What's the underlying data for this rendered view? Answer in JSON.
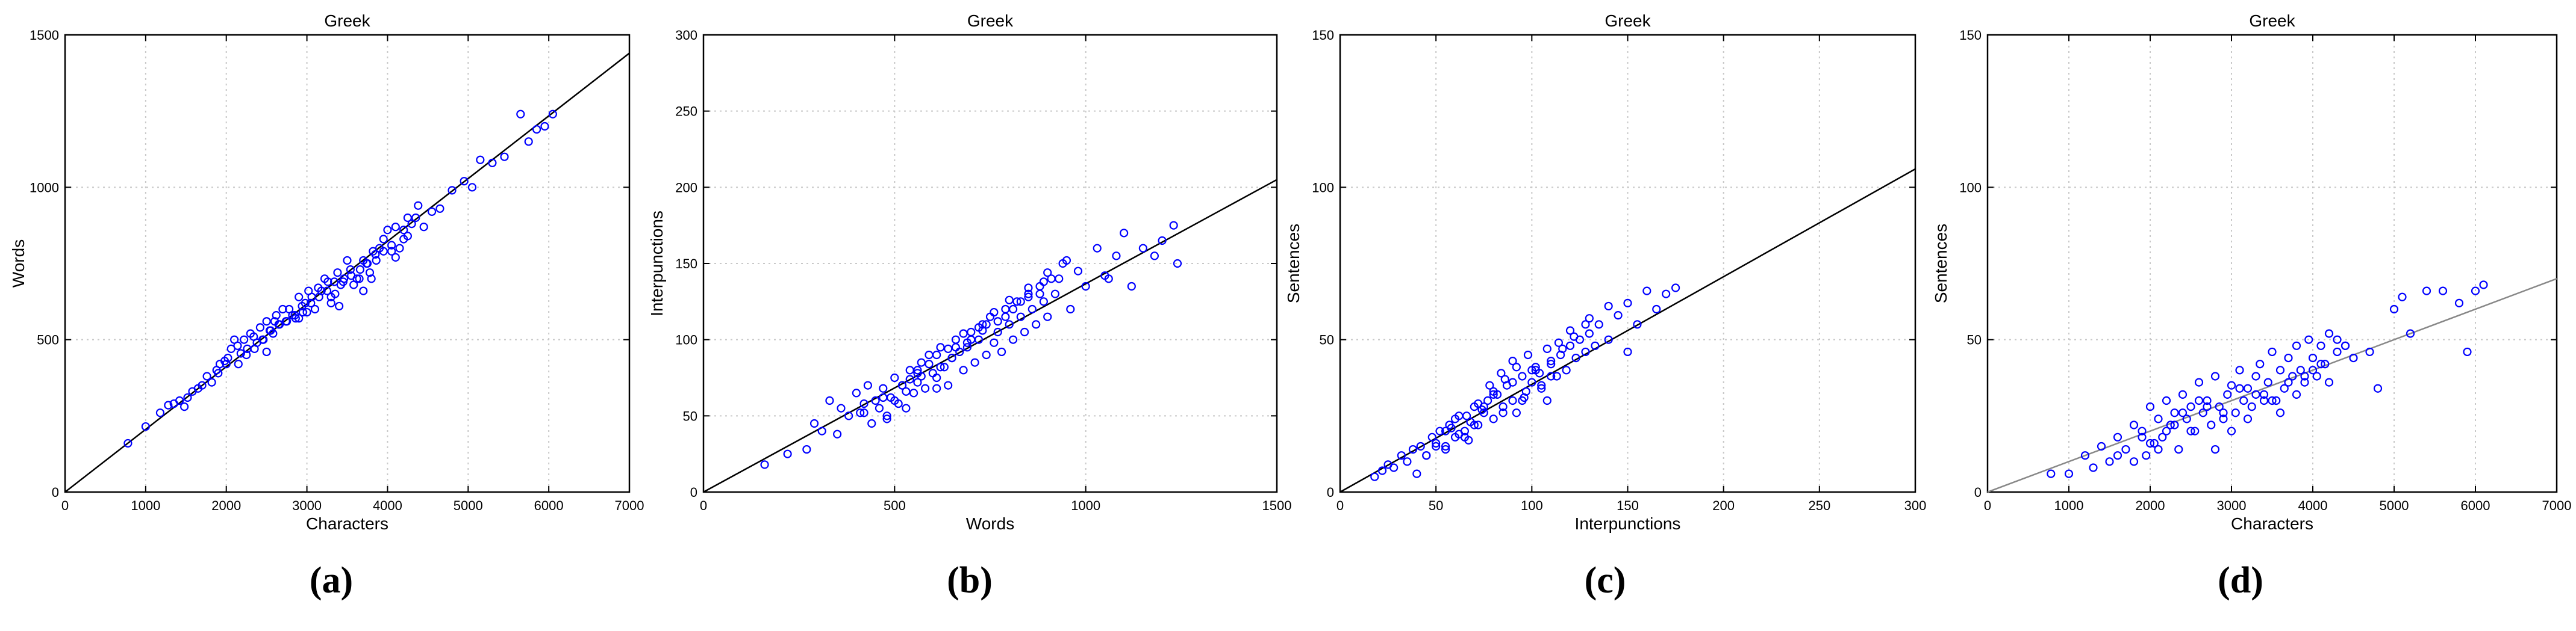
{
  "figure": {
    "panel_labels": [
      "(a)",
      "(b)",
      "(c)",
      "(d)"
    ]
  },
  "chart_data": [
    {
      "type": "scatter",
      "title": "Greek",
      "xlabel": "Characters",
      "ylabel": "Words",
      "xlim": [
        0,
        7000
      ],
      "ylim": [
        0,
        1500
      ],
      "xticks": [
        0,
        1000,
        2000,
        3000,
        4000,
        5000,
        6000,
        7000
      ],
      "yticks": [
        0,
        500,
        1000,
        1500
      ],
      "grid": true,
      "marker_color": "#0000ff",
      "fit_line": {
        "x": [
          0,
          7000
        ],
        "y": [
          0,
          1440
        ],
        "color": "#000000"
      },
      "series": [
        {
          "x": [
            780,
            1000,
            1180,
            1280,
            1350,
            1420,
            1480,
            1520,
            1580,
            1650,
            1700,
            1760,
            1820,
            1880,
            1920,
            1980,
            2020,
            2060,
            2100,
            2140,
            2180,
            2220,
            2260,
            2300,
            2340,
            2380,
            2420,
            2460,
            2500,
            2540,
            2580,
            2620,
            2660,
            2700,
            2740,
            2780,
            2820,
            2860,
            2900,
            2940,
            2980,
            3020,
            3060,
            3100,
            3140,
            3180,
            3220,
            3260,
            3300,
            3340,
            3380,
            3420,
            3460,
            3500,
            3540,
            3580,
            3620,
            3660,
            3700,
            3740,
            3780,
            3820,
            3860,
            3900,
            3950,
            4000,
            4050,
            4100,
            4150,
            4200,
            4250,
            4300,
            4380,
            4450,
            4550,
            4650,
            4800,
            4950,
            5050,
            5150,
            5300,
            5450,
            5650,
            5750,
            5850,
            5950,
            6050,
            2150,
            2450,
            2750,
            3050,
            3350,
            3650,
            3950,
            4250,
            2250,
            2550,
            2850,
            3150,
            3450,
            3750,
            4050,
            2350,
            2650,
            2950,
            3250,
            3550,
            3850,
            1900,
            2000,
            2500,
            2900,
            3300,
            3700,
            4100,
            4350,
            2600,
            3000,
            3400,
            3800,
            4200
          ],
          "y": [
            160,
            215,
            260,
            285,
            290,
            300,
            280,
            310,
            330,
            340,
            350,
            380,
            360,
            400,
            420,
            430,
            440,
            470,
            500,
            480,
            455,
            500,
            470,
            520,
            510,
            490,
            540,
            500,
            560,
            530,
            520,
            580,
            550,
            600,
            560,
            600,
            580,
            570,
            640,
            610,
            620,
            660,
            640,
            600,
            670,
            660,
            700,
            690,
            640,
            690,
            720,
            680,
            700,
            760,
            730,
            680,
            700,
            730,
            760,
            750,
            720,
            790,
            760,
            800,
            830,
            860,
            790,
            870,
            800,
            860,
            900,
            880,
            940,
            870,
            920,
            930,
            990,
            1020,
            1000,
            1090,
            1080,
            1100,
            1240,
            1150,
            1190,
            1200,
            1240,
            420,
            500,
            560,
            620,
            650,
            700,
            790,
            840,
            450,
            530,
            580,
            640,
            690,
            750,
            810,
            470,
            550,
            590,
            660,
            710,
            780,
            390,
            420,
            460,
            570,
            620,
            660,
            770,
            900,
            560,
            590,
            610,
            700,
            830
          ]
        }
      ]
    },
    {
      "type": "scatter",
      "title": "Greek",
      "xlabel": "Words",
      "ylabel": "Interpunctions",
      "xlim": [
        0,
        1500
      ],
      "ylim": [
        0,
        300
      ],
      "xticks": [
        0,
        500,
        1000,
        1500
      ],
      "yticks": [
        0,
        50,
        100,
        150,
        200,
        250,
        300
      ],
      "grid": true,
      "marker_color": "#0000ff",
      "fit_line": {
        "x": [
          0,
          1500
        ],
        "y": [
          0,
          205
        ],
        "color": "#000000"
      },
      "series": [
        {
          "x": [
            160,
            220,
            270,
            290,
            310,
            330,
            350,
            360,
            380,
            400,
            410,
            420,
            430,
            440,
            450,
            460,
            470,
            480,
            490,
            500,
            510,
            520,
            530,
            540,
            550,
            560,
            570,
            580,
            590,
            600,
            610,
            620,
            630,
            640,
            650,
            660,
            670,
            680,
            690,
            700,
            710,
            720,
            730,
            740,
            750,
            760,
            770,
            780,
            790,
            800,
            810,
            820,
            830,
            840,
            850,
            860,
            870,
            880,
            890,
            900,
            910,
            920,
            940,
            960,
            980,
            1000,
            1030,
            1060,
            1080,
            1100,
            1120,
            1150,
            1180,
            1200,
            1230,
            1240,
            420,
            470,
            520,
            560,
            610,
            660,
            700,
            740,
            790,
            830,
            880,
            930,
            480,
            530,
            570,
            620,
            650,
            690,
            730,
            770,
            810,
            850,
            890,
            500,
            540,
            590,
            640,
            680,
            720,
            760,
            800,
            850,
            900,
            950,
            1050,
            560,
            610
          ],
          "y": [
            18,
            25,
            28,
            45,
            40,
            60,
            38,
            55,
            50,
            65,
            52,
            58,
            70,
            45,
            60,
            55,
            68,
            50,
            62,
            75,
            58,
            70,
            55,
            80,
            65,
            72,
            85,
            68,
            90,
            78,
            75,
            95,
            82,
            70,
            88,
            100,
            92,
            80,
            95,
            105,
            85,
            100,
            110,
            90,
            115,
            98,
            105,
            92,
            120,
            110,
            100,
            125,
            115,
            105,
            130,
            120,
            110,
            135,
            125,
            115,
            140,
            130,
            150,
            120,
            145,
            135,
            160,
            140,
            155,
            170,
            135,
            160,
            155,
            165,
            175,
            150,
            52,
            62,
            70,
            80,
            90,
            95,
            100,
            110,
            115,
            125,
            130,
            140,
            48,
            66,
            76,
            82,
            88,
            98,
            106,
            112,
            120,
            128,
            138,
            60,
            74,
            84,
            94,
            104,
            108,
            118,
            126,
            134,
            144,
            152,
            142,
            78,
            68
          ]
        }
      ]
    },
    {
      "type": "scatter",
      "title": "Greek",
      "xlabel": "Interpunctions",
      "ylabel": "Sentences",
      "xlim": [
        0,
        300
      ],
      "ylim": [
        0,
        150
      ],
      "xticks": [
        0,
        50,
        100,
        150,
        200,
        250,
        300
      ],
      "yticks": [
        0,
        50,
        100,
        150
      ],
      "grid": true,
      "marker_color": "#0000ff",
      "fit_line": {
        "x": [
          0,
          300
        ],
        "y": [
          0,
          106
        ],
        "color": "#000000"
      },
      "series": [
        {
          "x": [
            18,
            22,
            25,
            28,
            32,
            35,
            38,
            40,
            42,
            45,
            48,
            50,
            52,
            55,
            57,
            60,
            62,
            65,
            67,
            70,
            72,
            75,
            77,
            80,
            82,
            85,
            87,
            90,
            92,
            95,
            97,
            100,
            102,
            105,
            108,
            110,
            113,
            115,
            118,
            120,
            123,
            125,
            128,
            130,
            133,
            135,
            140,
            145,
            150,
            155,
            160,
            165,
            170,
            175,
            45,
            50,
            55,
            60,
            65,
            70,
            75,
            80,
            85,
            90,
            95,
            100,
            105,
            110,
            55,
            62,
            68,
            74,
            80,
            86,
            92,
            98,
            104,
            110,
            116,
            122,
            128,
            58,
            66,
            72,
            78,
            84,
            90,
            96,
            102,
            108,
            114,
            120,
            130,
            140,
            150
          ],
          "y": [
            5,
            7,
            9,
            8,
            12,
            10,
            14,
            6,
            15,
            12,
            18,
            15,
            20,
            14,
            22,
            18,
            25,
            20,
            17,
            28,
            22,
            26,
            30,
            24,
            32,
            28,
            35,
            30,
            26,
            38,
            33,
            36,
            40,
            35,
            30,
            42,
            38,
            45,
            40,
            48,
            44,
            50,
            46,
            52,
            48,
            55,
            50,
            58,
            62,
            55,
            66,
            60,
            65,
            67,
            12,
            16,
            20,
            24,
            18,
            22,
            28,
            32,
            26,
            36,
            30,
            40,
            34,
            38,
            15,
            19,
            23,
            27,
            33,
            37,
            41,
            45,
            39,
            43,
            47,
            51,
            55,
            21,
            25,
            29,
            35,
            39,
            43,
            31,
            41,
            47,
            49,
            53,
            57,
            61,
            46
          ]
        }
      ]
    },
    {
      "type": "scatter",
      "title": "Greek",
      "xlabel": "Characters",
      "ylabel": "Sentences",
      "xlim": [
        0,
        7000
      ],
      "ylim": [
        0,
        150
      ],
      "xticks": [
        0,
        1000,
        2000,
        3000,
        4000,
        5000,
        6000,
        7000
      ],
      "yticks": [
        0,
        50,
        100,
        150
      ],
      "grid": true,
      "marker_color": "#0000ff",
      "fit_line": {
        "x": [
          0,
          7000
        ],
        "y": [
          0,
          70
        ],
        "color": "#888888"
      },
      "series": [
        {
          "x": [
            780,
            1000,
            1200,
            1300,
            1400,
            1500,
            1600,
            1700,
            1800,
            1900,
            1950,
            2000,
            2050,
            2100,
            2150,
            2200,
            2250,
            2300,
            2350,
            2400,
            2450,
            2500,
            2550,
            2600,
            2650,
            2700,
            2750,
            2800,
            2850,
            2900,
            2950,
            3000,
            3050,
            3100,
            3150,
            3200,
            3250,
            3300,
            3350,
            3400,
            3450,
            3500,
            3550,
            3600,
            3650,
            3700,
            3750,
            3800,
            3850,
            3900,
            3950,
            4000,
            4050,
            4100,
            4150,
            4200,
            4300,
            4400,
            4500,
            4700,
            4800,
            5000,
            5100,
            5200,
            5400,
            5600,
            5800,
            5900,
            6000,
            6100,
            1800,
            2000,
            2200,
            2400,
            2600,
            2800,
            3000,
            3200,
            3400,
            3600,
            3800,
            4000,
            4200,
            1600,
            1900,
            2300,
            2700,
            3100,
            3500,
            3900,
            4300,
            2100,
            2500,
            2900,
            3300,
            3700,
            4100,
            4400
          ],
          "y": [
            6,
            6,
            12,
            8,
            15,
            10,
            18,
            14,
            22,
            20,
            12,
            28,
            16,
            24,
            18,
            30,
            22,
            26,
            14,
            32,
            24,
            28,
            20,
            36,
            26,
            30,
            22,
            38,
            28,
            24,
            32,
            35,
            26,
            40,
            30,
            34,
            28,
            38,
            42,
            32,
            36,
            46,
            30,
            40,
            34,
            44,
            38,
            48,
            40,
            36,
            50,
            44,
            38,
            48,
            42,
            52,
            50,
            48,
            44,
            46,
            34,
            60,
            64,
            52,
            66,
            66,
            62,
            46,
            66,
            68,
            10,
            16,
            20,
            26,
            30,
            14,
            20,
            24,
            30,
            26,
            32,
            40,
            36,
            12,
            18,
            22,
            28,
            34,
            30,
            38,
            46,
            14,
            20,
            26,
            32,
            36,
            42,
            48
          ]
        }
      ]
    }
  ]
}
